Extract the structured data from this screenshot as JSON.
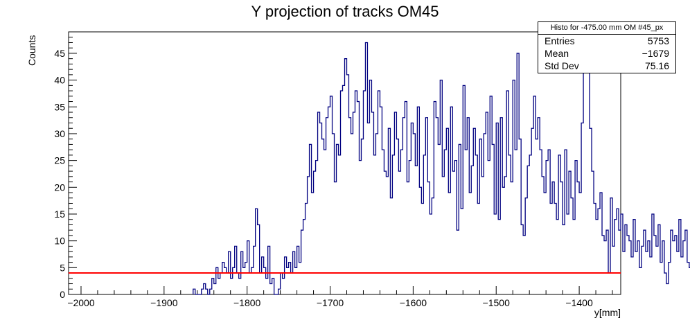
{
  "chart_data": {
    "type": "histogram",
    "title": "Y projection of tracks OM45",
    "xlabel": "y[mm]",
    "ylabel": "Counts",
    "xlim": [
      -2015,
      -1350
    ],
    "ylim": [
      0,
      49
    ],
    "x_ticks": [
      -2000,
      -1900,
      -1800,
      -1700,
      -1600,
      -1500,
      -1400
    ],
    "y_ticks": [
      0,
      5,
      10,
      15,
      20,
      25,
      30,
      35,
      40,
      45
    ],
    "bin_width": 2.5,
    "bin_start": -1865,
    "bin_values": [
      1,
      0,
      0,
      0,
      1,
      2,
      1,
      0,
      1,
      3,
      2,
      5,
      3,
      4,
      6,
      5,
      4,
      8,
      3,
      5,
      9,
      4,
      3,
      8,
      5,
      6,
      10,
      4,
      5,
      9,
      16,
      13,
      4,
      7,
      5,
      3,
      9,
      2,
      3,
      0,
      0,
      1,
      4,
      3,
      7,
      5,
      6,
      4,
      8,
      5,
      9,
      6,
      12,
      14,
      17,
      22,
      28,
      19,
      23,
      25,
      34,
      32,
      29,
      27,
      33,
      35,
      37,
      30,
      21,
      28,
      26,
      38,
      39,
      44,
      41,
      33,
      30,
      34,
      38,
      36,
      25,
      29,
      38,
      47,
      32,
      40,
      34,
      26,
      30,
      38,
      35,
      27,
      23,
      22,
      31,
      18,
      26,
      34,
      29,
      23,
      27,
      33,
      36,
      21,
      25,
      32,
      30,
      24,
      35,
      20,
      17,
      26,
      33,
      21,
      15,
      18,
      36,
      33,
      28,
      40,
      22,
      27,
      31,
      19,
      35,
      23,
      25,
      12,
      28,
      16,
      39,
      27,
      33,
      19,
      24,
      31,
      26,
      17,
      29,
      22,
      30,
      34,
      25,
      37,
      28,
      15,
      32,
      14,
      33,
      20,
      22,
      38,
      26,
      21,
      40,
      27,
      45,
      29,
      13,
      11,
      18,
      24,
      26,
      31,
      37,
      29,
      33,
      27,
      22,
      19,
      25,
      27,
      17,
      21,
      17,
      14,
      26,
      21,
      13,
      27,
      15,
      23,
      18,
      14,
      25,
      21,
      19,
      32,
      46,
      45,
      42,
      31,
      23,
      17,
      14,
      16,
      19,
      11,
      10,
      12,
      4,
      18,
      9,
      14,
      16,
      12,
      15,
      8,
      13,
      11,
      10,
      7,
      14,
      8,
      10,
      5,
      9,
      12,
      8,
      10,
      7,
      15,
      11,
      9,
      13,
      6,
      10,
      4,
      2,
      6,
      12,
      10,
      11,
      8,
      14,
      7,
      10,
      12,
      6,
      5,
      8,
      4,
      2,
      3,
      3,
      3,
      2,
      1,
      0
    ],
    "fit_line_y": 4,
    "line_color": "#000080",
    "fit_color": "#ff0000"
  },
  "stats_box": {
    "title": "Histo for -475.00 mm OM #45_px",
    "rows": [
      {
        "label": "Entries",
        "value": "5753"
      },
      {
        "label": "Mean",
        "value": "−1679"
      },
      {
        "label": "Std Dev",
        "value": "75.16"
      }
    ]
  }
}
